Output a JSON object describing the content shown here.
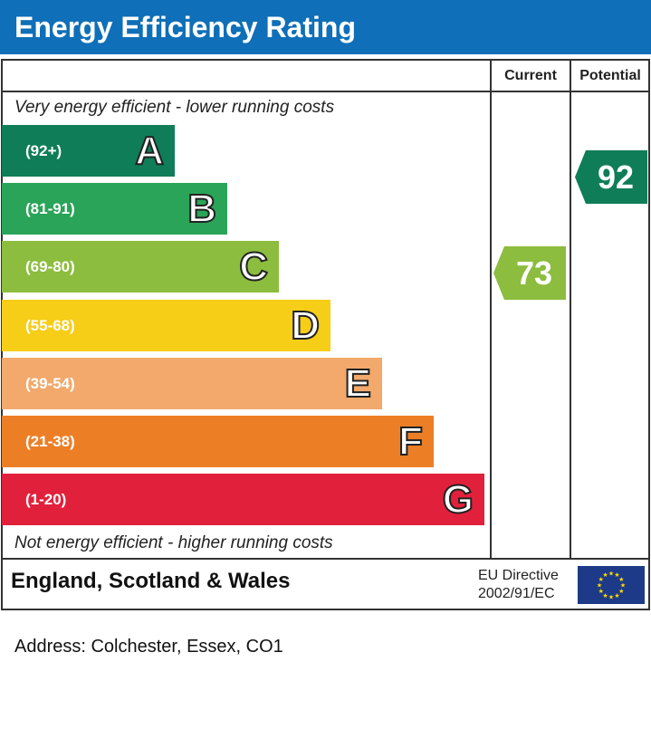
{
  "title": "Energy Efficiency Rating",
  "columns": {
    "current": "Current",
    "potential": "Potential"
  },
  "notes": {
    "top": "Very energy efficient - lower running costs",
    "bottom": "Not energy efficient - higher running costs"
  },
  "chart_data": {
    "type": "bar",
    "title": "Energy Efficiency Rating",
    "categories": [
      "A",
      "B",
      "C",
      "D",
      "E",
      "F",
      "G"
    ],
    "ranges": [
      "(92+)",
      "(81-91)",
      "(69-80)",
      "(55-68)",
      "(39-54)",
      "(21-38)",
      "(1-20)"
    ],
    "colors": [
      "#0f7d58",
      "#2aa458",
      "#8cbd3e",
      "#f6cd17",
      "#f2a96b",
      "#ec7f26",
      "#e1213b"
    ],
    "current": {
      "value": "73",
      "band": "C",
      "color": "#8cbd3e"
    },
    "potential": {
      "value": "92",
      "band": "A",
      "color": "#0f7d58"
    }
  },
  "footer": {
    "region": "England, Scotland & Wales",
    "directive_line1": "EU Directive",
    "directive_line2": "2002/91/EC"
  },
  "address": "Address: Colchester, Essex, CO1"
}
